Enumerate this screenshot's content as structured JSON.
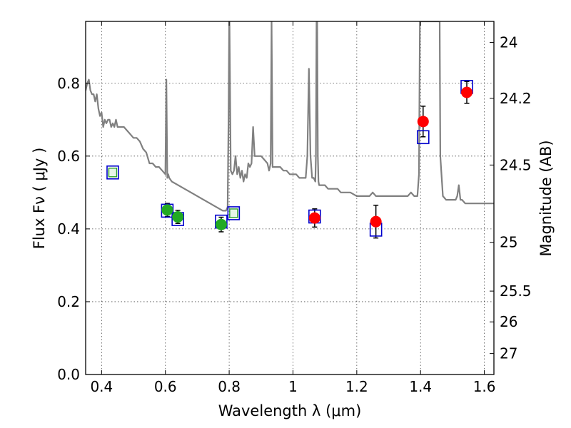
{
  "chart_data": {
    "type": "scatter",
    "title": "",
    "xlabel": "Wavelength  λ (μm)",
    "ylabel": "Flux  Fν  ( μJy )",
    "y2label": "Magnitude (AB)",
    "xlim": [
      0.35,
      1.63
    ],
    "ylim": [
      0.0,
      0.97
    ],
    "grid": true,
    "x_ticks": [
      0.4,
      0.6,
      0.8,
      1.0,
      1.2,
      1.4,
      1.6
    ],
    "x_tick_labels": [
      "0.4",
      "0.6",
      "0.8",
      "1",
      "1.2",
      "1.4",
      "1.6"
    ],
    "y_ticks": [
      0.0,
      0.2,
      0.4,
      0.6,
      0.8
    ],
    "y_tick_labels": [
      "0.0",
      "0.2",
      "0.4",
      "0.6",
      "0.8"
    ],
    "mag_ticks": [
      24,
      24.2,
      24.5,
      25,
      25.5,
      26,
      27
    ],
    "mag_tick_labels": [
      "24",
      "24.2",
      "24.5",
      "25",
      "25.5",
      "26",
      "27"
    ],
    "series": [
      {
        "role": "model-spectrum",
        "color": "#808080",
        "x": [
          0.35,
          0.355,
          0.36,
          0.365,
          0.37,
          0.375,
          0.38,
          0.385,
          0.39,
          0.395,
          0.4,
          0.405,
          0.41,
          0.415,
          0.42,
          0.425,
          0.43,
          0.435,
          0.44,
          0.445,
          0.45,
          0.46,
          0.47,
          0.48,
          0.49,
          0.5,
          0.51,
          0.52,
          0.53,
          0.54,
          0.55,
          0.56,
          0.57,
          0.58,
          0.59,
          0.6,
          0.603,
          0.606,
          0.609,
          0.612,
          0.62,
          0.64,
          0.66,
          0.68,
          0.7,
          0.72,
          0.74,
          0.76,
          0.78,
          0.79,
          0.795,
          0.798,
          0.8,
          0.801,
          0.805,
          0.81,
          0.815,
          0.82,
          0.825,
          0.83,
          0.835,
          0.84,
          0.845,
          0.85,
          0.855,
          0.86,
          0.865,
          0.87,
          0.875,
          0.88,
          0.89,
          0.9,
          0.91,
          0.92,
          0.925,
          0.93,
          0.933,
          0.936,
          0.94,
          0.95,
          0.96,
          0.97,
          0.98,
          0.99,
          1.0,
          1.01,
          1.02,
          1.03,
          1.04,
          1.045,
          1.05,
          1.055,
          1.06,
          1.065,
          1.07,
          1.072,
          1.074,
          1.076,
          1.078,
          1.08,
          1.082,
          1.09,
          1.1,
          1.11,
          1.12,
          1.13,
          1.14,
          1.15,
          1.16,
          1.18,
          1.2,
          1.22,
          1.24,
          1.25,
          1.26,
          1.27,
          1.28,
          1.3,
          1.32,
          1.34,
          1.36,
          1.37,
          1.38,
          1.39,
          1.395,
          1.398,
          1.4,
          1.402,
          1.41,
          1.44,
          1.458,
          1.46,
          1.462,
          1.47,
          1.48,
          1.49,
          1.5,
          1.51,
          1.515,
          1.52,
          1.525,
          1.53,
          1.54,
          1.56,
          1.58,
          1.6,
          1.63
        ],
        "y": [
          0.78,
          0.8,
          0.81,
          0.78,
          0.77,
          0.77,
          0.75,
          0.77,
          0.73,
          0.71,
          0.72,
          0.68,
          0.7,
          0.69,
          0.7,
          0.7,
          0.68,
          0.69,
          0.68,
          0.7,
          0.68,
          0.68,
          0.68,
          0.67,
          0.66,
          0.65,
          0.65,
          0.64,
          0.62,
          0.61,
          0.58,
          0.58,
          0.57,
          0.57,
          0.56,
          0.55,
          0.81,
          0.54,
          0.55,
          0.54,
          0.53,
          0.52,
          0.51,
          0.5,
          0.49,
          0.48,
          0.47,
          0.46,
          0.45,
          0.45,
          0.46,
          0.7,
          0.97,
          0.97,
          0.56,
          0.55,
          0.56,
          0.6,
          0.55,
          0.57,
          0.54,
          0.56,
          0.53,
          0.55,
          0.54,
          0.58,
          0.57,
          0.58,
          0.68,
          0.6,
          0.6,
          0.6,
          0.59,
          0.58,
          0.56,
          0.58,
          0.97,
          0.57,
          0.57,
          0.57,
          0.57,
          0.56,
          0.56,
          0.55,
          0.55,
          0.55,
          0.54,
          0.54,
          0.54,
          0.6,
          0.84,
          0.6,
          0.54,
          0.54,
          0.53,
          0.6,
          0.97,
          0.97,
          0.6,
          0.53,
          0.52,
          0.52,
          0.52,
          0.51,
          0.51,
          0.51,
          0.51,
          0.5,
          0.5,
          0.5,
          0.49,
          0.49,
          0.49,
          0.5,
          0.49,
          0.49,
          0.49,
          0.49,
          0.49,
          0.49,
          0.49,
          0.5,
          0.49,
          0.49,
          0.55,
          0.97,
          0.97,
          0.97,
          0.97,
          0.97,
          0.97,
          0.97,
          0.6,
          0.49,
          0.48,
          0.48,
          0.48,
          0.48,
          0.49,
          0.52,
          0.48,
          0.48,
          0.47,
          0.47,
          0.47,
          0.47,
          0.47
        ]
      },
      {
        "role": "model-band-fluxes",
        "marker": "open-square",
        "color": "#0000cc",
        "x": [
          0.435,
          0.606,
          0.639,
          0.775,
          0.814,
          1.068,
          1.26,
          1.408,
          1.545
        ],
        "y": [
          0.555,
          0.45,
          0.427,
          0.42,
          0.443,
          0.434,
          0.398,
          0.652,
          0.79
        ]
      },
      {
        "role": "upper-limit-squares",
        "marker": "filled-square",
        "color": "#2ca02c",
        "x": [
          0.435,
          0.814
        ],
        "y": [
          0.555,
          0.443
        ]
      },
      {
        "role": "observed-hst-acs",
        "marker": "filled-circle",
        "color": "#22aa22",
        "x": [
          0.606,
          0.639,
          0.775
        ],
        "y": [
          0.452,
          0.433,
          0.412
        ],
        "yerr": [
          0.018,
          0.018,
          0.02
        ]
      },
      {
        "role": "observed-hst-wfc3",
        "marker": "filled-circle",
        "color": "#ff0000",
        "x": [
          1.068,
          1.26,
          1.408,
          1.545
        ],
        "y": [
          0.43,
          0.42,
          0.695,
          0.775
        ],
        "yerr": [
          0.025,
          0.045,
          0.042,
          0.03
        ]
      }
    ]
  }
}
